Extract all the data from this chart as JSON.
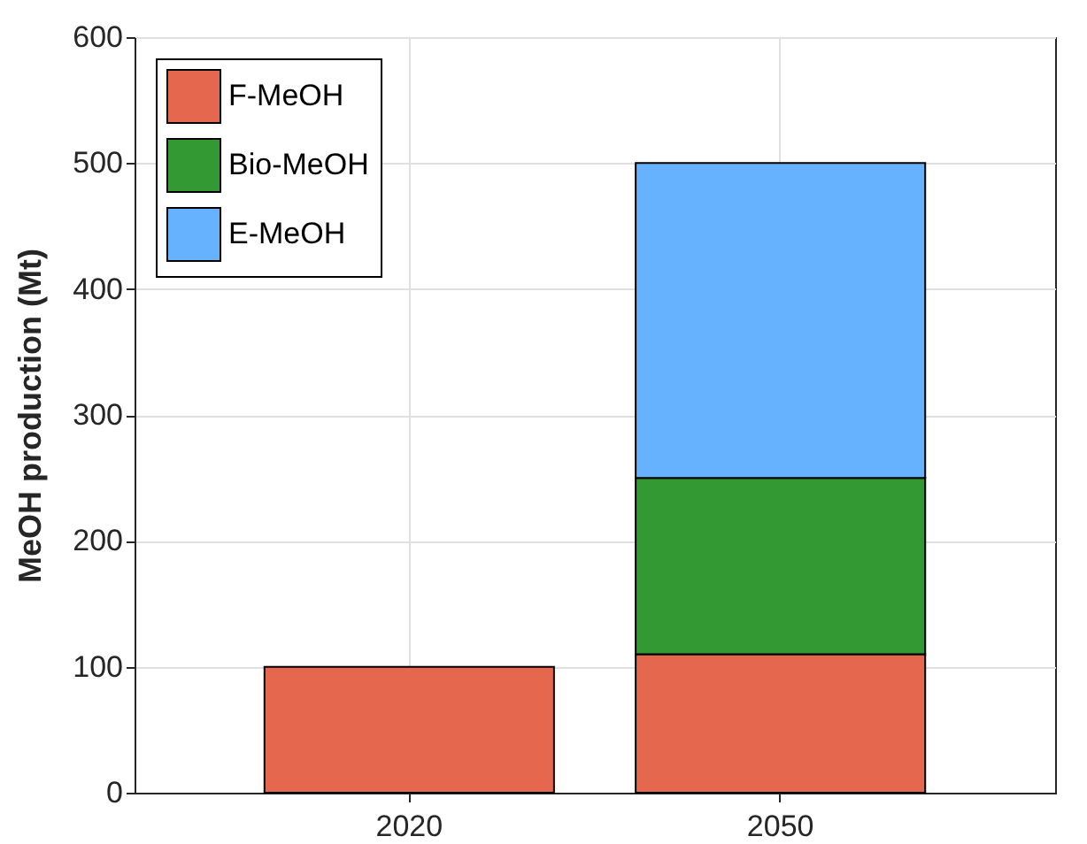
{
  "chart_data": {
    "type": "bar",
    "ylabel": "MeOH production (Mt)",
    "categories": [
      "2020",
      "2050"
    ],
    "series": [
      {
        "name": "F-MeOH",
        "color": "#e5674e",
        "values": [
          100,
          110
        ]
      },
      {
        "name": "Bio-MeOH",
        "color": "#339933",
        "values": [
          null,
          140
        ]
      },
      {
        "name": "E-MeOH",
        "color": "#66b2ff",
        "values": [
          null,
          250
        ]
      }
    ],
    "stacked": true,
    "ylim": [
      0,
      600
    ],
    "yticks": [
      0,
      100,
      200,
      300,
      400,
      500,
      600
    ],
    "grid": true,
    "legend": "top left"
  }
}
